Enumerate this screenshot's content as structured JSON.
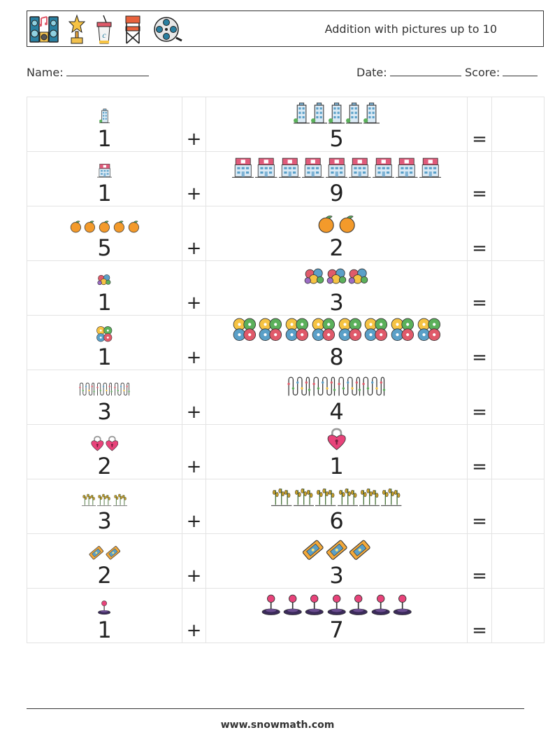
{
  "header": {
    "title": "Addition with pictures up to 10",
    "icons": [
      "speakers-icon",
      "trophy-icon",
      "soda-cup-icon",
      "director-chair-icon",
      "film-reel-icon"
    ]
  },
  "meta": {
    "name_label": "Name:",
    "date_label": "Date:",
    "score_label": "Score:"
  },
  "operators": {
    "plus": "+",
    "equals": "="
  },
  "rows": [
    {
      "left": {
        "value": "1",
        "icon": "building-icon",
        "count": 1
      },
      "right": {
        "value": "5",
        "icon": "building-icon",
        "count": 5
      }
    },
    {
      "left": {
        "value": "1",
        "icon": "hotel-icon",
        "count": 1
      },
      "right": {
        "value": "9",
        "icon": "hotel-icon",
        "count": 9
      }
    },
    {
      "left": {
        "value": "5",
        "icon": "orange-icon",
        "count": 5
      },
      "right": {
        "value": "2",
        "icon": "orange-icon",
        "count": 2
      }
    },
    {
      "left": {
        "value": "1",
        "icon": "balloons-icon",
        "count": 1
      },
      "right": {
        "value": "3",
        "icon": "balloons-icon",
        "count": 3
      }
    },
    {
      "left": {
        "value": "1",
        "icon": "clover-icon",
        "count": 1
      },
      "right": {
        "value": "8",
        "icon": "clover-icon",
        "count": 8
      }
    },
    {
      "left": {
        "value": "3",
        "icon": "string-lights-icon",
        "count": 3
      },
      "right": {
        "value": "4",
        "icon": "string-lights-icon",
        "count": 4
      }
    },
    {
      "left": {
        "value": "2",
        "icon": "heart-lock-icon",
        "count": 2
      },
      "right": {
        "value": "1",
        "icon": "heart-lock-icon",
        "count": 1
      }
    },
    {
      "left": {
        "value": "3",
        "icon": "wheat-icon",
        "count": 3
      },
      "right": {
        "value": "6",
        "icon": "wheat-icon",
        "count": 6
      }
    },
    {
      "left": {
        "value": "2",
        "icon": "ticket-icon",
        "count": 2
      },
      "right": {
        "value": "3",
        "icon": "ticket-icon",
        "count": 3
      }
    },
    {
      "left": {
        "value": "1",
        "icon": "joystick-icon",
        "count": 1
      },
      "right": {
        "value": "7",
        "icon": "joystick-icon",
        "count": 7
      }
    }
  ],
  "footer": {
    "site": "www.snowmath.com"
  }
}
